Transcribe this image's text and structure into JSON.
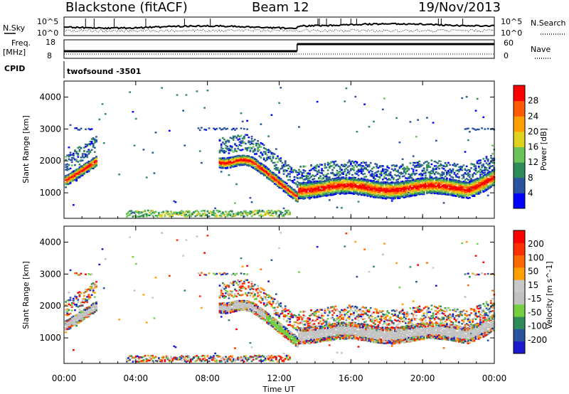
{
  "header": {
    "station": "Blackstone (fitACF)",
    "beam": "Beam 12",
    "date": "19/Nov/2013"
  },
  "summary": {
    "nsky_label": "N.Sky",
    "nsearch_label": "N.Search",
    "freq_label": "Freq.",
    "freq_unit": "[MHz]",
    "nave_label": "Nave",
    "cpid_label": "CPID",
    "cpid_value": "twofsound -3501",
    "noise_ticks": {
      "left_top": "10^5",
      "left_bottom": "10^0",
      "right_top": "10^5",
      "right_bottom": "10^0"
    },
    "freq_ticks": [
      "18",
      "8"
    ],
    "nave_ticks": [
      "60",
      "0"
    ]
  },
  "colors": {
    "power": [
      "#0000ff",
      "#2a54a0",
      "#2f8c5a",
      "#6ac45a",
      "#e0d020",
      "#ffa000",
      "#ff5a00",
      "#ff0000"
    ],
    "velocity": [
      "#1a1acc",
      "#2a54a0",
      "#2f8c5a",
      "#74d040",
      "#c0c0c0",
      "#c8c8c8",
      "#ffa000",
      "#ff6a00",
      "#ff3000",
      "#ff0000"
    ]
  },
  "chart_data": [
    {
      "type": "heatmap",
      "name": "power",
      "ylabel": "Slant Range [km]",
      "yticks": [
        "1000",
        "2000",
        "3000",
        "4000"
      ],
      "ylim": [
        200,
        4500
      ],
      "xlim_hours": [
        0,
        24
      ],
      "colorbar": {
        "label": "Power [dB]",
        "ticks": [
          "4",
          "8",
          "12",
          "16",
          "20",
          "24",
          "28"
        ]
      }
    },
    {
      "type": "heatmap",
      "name": "velocity",
      "ylabel": "Slant Range [km]",
      "yticks": [
        "1000",
        "2000",
        "3000",
        "4000"
      ],
      "ylim": [
        200,
        4500
      ],
      "xlim_hours": [
        0,
        24
      ],
      "colorbar": {
        "label": "Velocity [m s^-1]",
        "ticks": [
          "200",
          "100",
          "50",
          "15",
          "-15",
          "-50",
          "-100",
          "-200"
        ]
      }
    }
  ],
  "xaxis": {
    "label": "Time UT",
    "ticks": [
      "00:00",
      "04:00",
      "08:00",
      "12:00",
      "16:00",
      "20:00",
      "00:00"
    ]
  }
}
